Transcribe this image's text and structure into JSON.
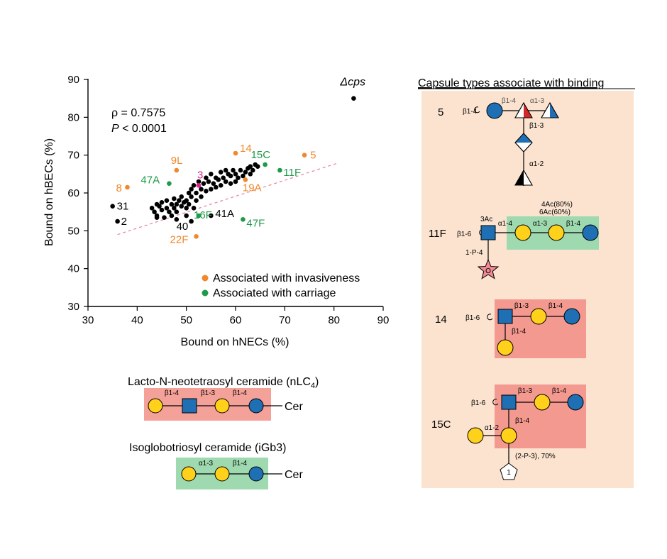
{
  "chart_data": {
    "type": "scatter",
    "xlabel": "Bound on hNECs (%)",
    "ylabel": "Bound on hBECs (%)",
    "xlim": [
      30,
      90
    ],
    "ylim": [
      30,
      90
    ],
    "xticks": [
      30,
      40,
      50,
      60,
      70,
      80,
      90
    ],
    "yticks": [
      30,
      40,
      50,
      60,
      70,
      80,
      90
    ],
    "annotation_rho": "ρ = 0.7575",
    "annotation_p_italic": "P",
    "annotation_p_rest": " < 0.0001",
    "trendline": {
      "x": [
        36,
        81
      ],
      "y": [
        49,
        68
      ],
      "color": "#e78a9a",
      "style": "dashed"
    },
    "legend": {
      "placement": "bottom-right",
      "entries": [
        {
          "label": "Associated with invasiveness",
          "color": "#f0892b"
        },
        {
          "label": "Associated with carriage",
          "color": "#1f9a4a"
        }
      ]
    },
    "colors": {
      "other": "#000000",
      "invasive": "#f0892b",
      "carriage": "#1f9a4a",
      "serotype3": "#e0218a"
    },
    "labeled_points": [
      {
        "label": "Δcps",
        "x": 84,
        "y": 85,
        "group": "other"
      },
      {
        "label": "5",
        "x": 74,
        "y": 70,
        "group": "invasive"
      },
      {
        "label": "14",
        "x": 60,
        "y": 70.5,
        "group": "invasive"
      },
      {
        "label": "9L",
        "x": 48,
        "y": 66,
        "group": "invasive"
      },
      {
        "label": "8",
        "x": 38,
        "y": 61.5,
        "group": "invasive"
      },
      {
        "label": "19A",
        "x": 62,
        "y": 63.5,
        "group": "invasive"
      },
      {
        "label": "22F",
        "x": 52,
        "y": 48.5,
        "group": "invasive"
      },
      {
        "label": "15C",
        "x": 66,
        "y": 67.5,
        "group": "carriage"
      },
      {
        "label": "11F",
        "x": 69,
        "y": 66,
        "group": "carriage"
      },
      {
        "label": "47A",
        "x": 46.5,
        "y": 62.5,
        "group": "carriage"
      },
      {
        "label": "16F",
        "x": 52.5,
        "y": 54,
        "group": "carriage"
      },
      {
        "label": "47F",
        "x": 61.5,
        "y": 53,
        "group": "carriage"
      },
      {
        "label": "3",
        "x": 52.5,
        "y": 62,
        "group": "serotype3"
      },
      {
        "label": "31",
        "x": 35,
        "y": 56.5,
        "group": "other"
      },
      {
        "label": "2",
        "x": 36,
        "y": 52.5,
        "group": "other"
      },
      {
        "label": "41A",
        "x": 55,
        "y": 54,
        "group": "other"
      },
      {
        "label": "40",
        "x": 51,
        "y": 52.5,
        "group": "other"
      }
    ],
    "unlabeled_points": [
      [
        43,
        56
      ],
      [
        43.5,
        55
      ],
      [
        44,
        57
      ],
      [
        44,
        54
      ],
      [
        44.5,
        56.5
      ],
      [
        45,
        55.5
      ],
      [
        45,
        57.5
      ],
      [
        45.5,
        53.5
      ],
      [
        46,
        56
      ],
      [
        46,
        58
      ],
      [
        46.5,
        55
      ],
      [
        47,
        57
      ],
      [
        47,
        54
      ],
      [
        47.5,
        56
      ],
      [
        47.5,
        58.5
      ],
      [
        48,
        57
      ],
      [
        48,
        55
      ],
      [
        48.5,
        58
      ],
      [
        49,
        56.5
      ],
      [
        49,
        59
      ],
      [
        49.5,
        57.5
      ],
      [
        50,
        58
      ],
      [
        50,
        56
      ],
      [
        50.5,
        60
      ],
      [
        50.5,
        57
      ],
      [
        51,
        59
      ],
      [
        51,
        61
      ],
      [
        51.5,
        62
      ],
      [
        52,
        58
      ],
      [
        52,
        60
      ],
      [
        52.5,
        63
      ],
      [
        53,
        61
      ],
      [
        53,
        59
      ],
      [
        53.5,
        62.5
      ],
      [
        54,
        60.5
      ],
      [
        54,
        64
      ],
      [
        54.5,
        63
      ],
      [
        55,
        61
      ],
      [
        55,
        65
      ],
      [
        55.5,
        62.5
      ],
      [
        56,
        64
      ],
      [
        56,
        61.5
      ],
      [
        56.5,
        63.5
      ],
      [
        57,
        65.5
      ],
      [
        57,
        62
      ],
      [
        57.5,
        64
      ],
      [
        58,
        66
      ],
      [
        58,
        63
      ],
      [
        58.5,
        65
      ],
      [
        59,
        62.5
      ],
      [
        59,
        64.5
      ],
      [
        59.5,
        66
      ],
      [
        60,
        63
      ],
      [
        60,
        65
      ],
      [
        60.5,
        64
      ],
      [
        61,
        66
      ],
      [
        61.5,
        64.5
      ],
      [
        62,
        65.5
      ],
      [
        62.5,
        66.5
      ],
      [
        63,
        67
      ],
      [
        63,
        65
      ],
      [
        63.5,
        66
      ],
      [
        64,
        67.5
      ],
      [
        64.5,
        67
      ],
      [
        44,
        53.5
      ],
      [
        48,
        53
      ],
      [
        50,
        54
      ],
      [
        51.5,
        56
      ]
    ]
  },
  "ceramides": {
    "nlc4": {
      "title": "Lacto-N-neotetraosyl ceramide (nLC",
      "title_sub": "4",
      "title_end": ")",
      "linkages": [
        "β1-4",
        "β1-3",
        "β1-4"
      ],
      "tail": "Cer",
      "box_color": "#f4a199"
    },
    "igb3": {
      "title": "Isoglobotriosyl  ceramide (iGb3)",
      "linkages": [
        "α1-3",
        "β1-4"
      ],
      "tail": "Cer",
      "box_color": "#9fd9b0"
    }
  },
  "capsule_panel": {
    "title": "Capsule types associate with binding",
    "bg_color": "#fbe3cf",
    "s5": {
      "name": "5",
      "labels": [
        "β1-4",
        "β1-4",
        "α1-3",
        "β1-3",
        "α1-2"
      ]
    },
    "s11f": {
      "name": "11F",
      "ac_top": "4Ac(80%)",
      "ac_bottom": "6Ac(60%)",
      "three_ac": "3Ac",
      "labels": [
        "β1-6",
        "α1-4",
        "α1-3",
        "β1-4",
        "1-P-4"
      ],
      "star_label": "O"
    },
    "s14": {
      "name": "14",
      "labels": [
        "β1-6",
        "β1-3",
        "β1-4",
        "β1-4"
      ]
    },
    "s15c": {
      "name": "15C",
      "labels": [
        "β1-6",
        "β1-3",
        "β1-4",
        "β1-4",
        "α1-2"
      ],
      "note": "(2-P-3), 70%",
      "pentagon_label": "1"
    }
  }
}
